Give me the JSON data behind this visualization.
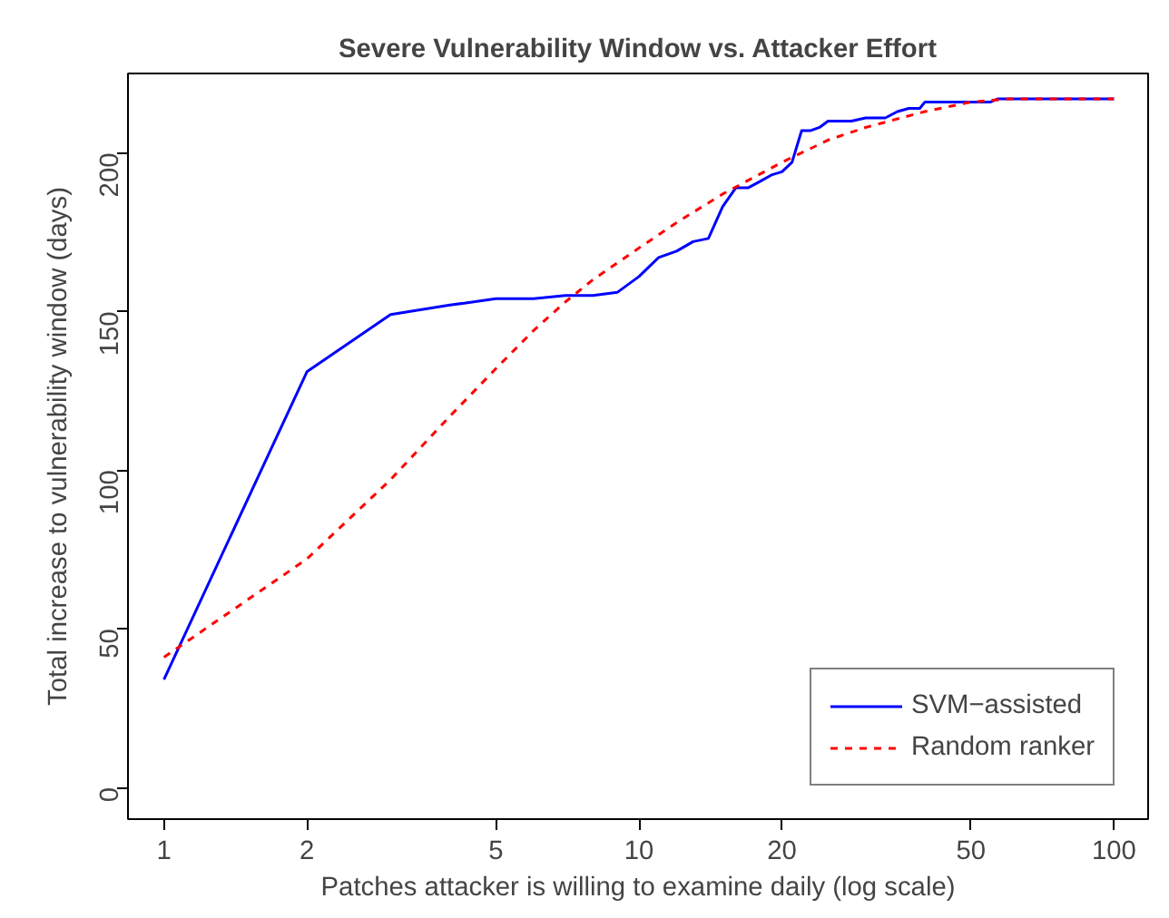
{
  "chart_data": {
    "type": "line",
    "title": "Severe Vulnerability Window vs. Attacker Effort",
    "xlabel": "Patches attacker is willing to examine daily (log scale)",
    "ylabel": "Total increase to vulnerability window (days)",
    "log": "x",
    "xlim": [
      0.84,
      118
    ],
    "ylim": [
      -10,
      225
    ],
    "xticks": [
      1,
      2,
      5,
      10,
      20,
      50,
      100
    ],
    "yticks": [
      0,
      50,
      100,
      150,
      200
    ],
    "grid": false,
    "legend": "bottom right",
    "series": [
      {
        "name": "SVM−assisted",
        "color": "#0000ff",
        "line_style": "solid",
        "x": [
          1,
          2,
          3,
          4,
          5,
          6,
          7,
          8,
          9,
          10,
          11,
          12,
          13,
          14,
          15,
          16,
          17,
          18,
          19,
          20,
          21,
          22,
          23,
          24,
          25,
          28,
          30,
          33,
          35,
          37,
          39,
          40,
          55,
          57,
          100
        ],
        "values": [
          34,
          131,
          149,
          152,
          154,
          154,
          155,
          155,
          156,
          161,
          167,
          169,
          172,
          173,
          183,
          189,
          189,
          191,
          193,
          194,
          197,
          207,
          207,
          208,
          210,
          210,
          211,
          211,
          213,
          214,
          214,
          216,
          216,
          217,
          217
        ]
      },
      {
        "name": "Random ranker",
        "color": "#ff0000",
        "line_style": "dashed",
        "x": [
          1,
          2,
          3,
          4,
          5,
          6,
          7,
          8,
          10,
          12,
          15,
          20,
          25,
          30,
          40,
          50,
          60,
          100
        ],
        "values": [
          41,
          72,
          97,
          117,
          132,
          144,
          153,
          160,
          170,
          178,
          187,
          197,
          204,
          208,
          213,
          216,
          217,
          217
        ]
      }
    ]
  }
}
